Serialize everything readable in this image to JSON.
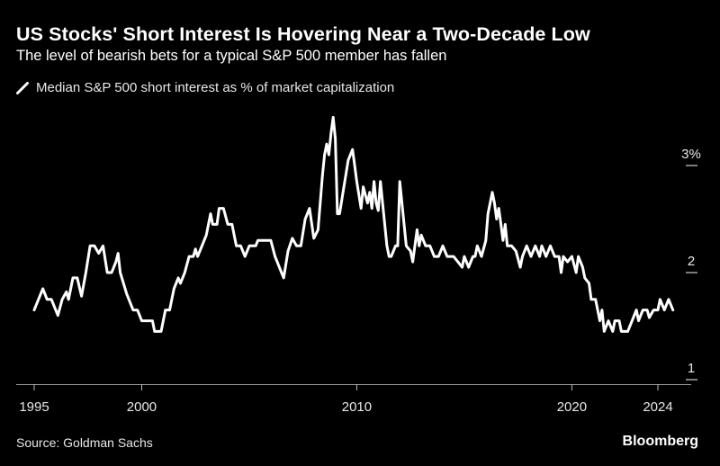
{
  "colors": {
    "background": "#000000",
    "line": "#ffffff",
    "text": "#e8e8e8"
  },
  "header": {
    "title": "US Stocks' Short Interest Is Hovering Near a Two-Decade Low",
    "subtitle": "The level of bearish bets for a typical S&P 500 member has fallen"
  },
  "footer": {
    "source": "Source: Goldman Sachs",
    "brand": "Bloomberg"
  },
  "chart_data": {
    "type": "line",
    "title": "US Stocks' Short Interest Is Hovering Near a Two-Decade Low",
    "subtitle": "The level of bearish bets for a typical S&P 500 member has fallen",
    "xlabel": "",
    "ylabel": "",
    "xlim": [
      1995,
      2025
    ],
    "ylim": [
      1,
      3.5
    ],
    "grid": false,
    "legend_position": "top-left",
    "x_ticks": [
      {
        "value": 1995,
        "label": "1995"
      },
      {
        "value": 2000,
        "label": "2000"
      },
      {
        "value": 2010,
        "label": "2010"
      },
      {
        "value": 2020,
        "label": "2020"
      },
      {
        "value": 2024,
        "label": "2024"
      }
    ],
    "y_ticks": [
      {
        "value": 3,
        "label": "3%"
      },
      {
        "value": 2,
        "label": "2"
      },
      {
        "value": 1,
        "label": "1"
      }
    ],
    "series": [
      {
        "name": "Median S&P 500 short interest as % of market capitalization",
        "points": [
          [
            1995.0,
            1.65
          ],
          [
            1995.3,
            1.8
          ],
          [
            1995.4,
            1.85
          ],
          [
            1995.6,
            1.75
          ],
          [
            1995.8,
            1.75
          ],
          [
            1996.0,
            1.65
          ],
          [
            1996.1,
            1.6
          ],
          [
            1996.3,
            1.75
          ],
          [
            1996.5,
            1.82
          ],
          [
            1996.6,
            1.75
          ],
          [
            1996.8,
            1.95
          ],
          [
            1997.0,
            1.95
          ],
          [
            1997.2,
            1.78
          ],
          [
            1997.4,
            2.0
          ],
          [
            1997.6,
            2.25
          ],
          [
            1997.8,
            2.25
          ],
          [
            1998.0,
            2.18
          ],
          [
            1998.2,
            2.25
          ],
          [
            1998.4,
            2.0
          ],
          [
            1998.6,
            2.0
          ],
          [
            1998.8,
            2.1
          ],
          [
            1998.9,
            2.18
          ],
          [
            1999.0,
            2.0
          ],
          [
            1999.3,
            1.8
          ],
          [
            1999.6,
            1.65
          ],
          [
            1999.8,
            1.65
          ],
          [
            2000.0,
            1.55
          ],
          [
            2000.3,
            1.55
          ],
          [
            2000.5,
            1.55
          ],
          [
            2000.6,
            1.45
          ],
          [
            2000.9,
            1.45
          ],
          [
            2001.0,
            1.55
          ],
          [
            2001.1,
            1.65
          ],
          [
            2001.3,
            1.65
          ],
          [
            2001.5,
            1.85
          ],
          [
            2001.7,
            1.95
          ],
          [
            2001.8,
            1.9
          ],
          [
            2002.0,
            2.0
          ],
          [
            2002.2,
            2.15
          ],
          [
            2002.4,
            2.15
          ],
          [
            2002.5,
            2.22
          ],
          [
            2002.6,
            2.15
          ],
          [
            2002.8,
            2.25
          ],
          [
            2003.0,
            2.35
          ],
          [
            2003.2,
            2.55
          ],
          [
            2003.3,
            2.45
          ],
          [
            2003.5,
            2.45
          ],
          [
            2003.6,
            2.6
          ],
          [
            2003.8,
            2.6
          ],
          [
            2004.0,
            2.45
          ],
          [
            2004.2,
            2.45
          ],
          [
            2004.4,
            2.25
          ],
          [
            2004.6,
            2.25
          ],
          [
            2004.8,
            2.15
          ],
          [
            2005.0,
            2.25
          ],
          [
            2005.3,
            2.25
          ],
          [
            2005.4,
            2.3
          ],
          [
            2005.7,
            2.3
          ],
          [
            2006.0,
            2.3
          ],
          [
            2006.2,
            2.15
          ],
          [
            2006.4,
            2.05
          ],
          [
            2006.6,
            1.95
          ],
          [
            2006.8,
            2.2
          ],
          [
            2007.0,
            2.32
          ],
          [
            2007.2,
            2.25
          ],
          [
            2007.4,
            2.25
          ],
          [
            2007.6,
            2.5
          ],
          [
            2007.8,
            2.6
          ],
          [
            2008.0,
            2.32
          ],
          [
            2008.2,
            2.4
          ],
          [
            2008.4,
            2.9
          ],
          [
            2008.5,
            3.1
          ],
          [
            2008.6,
            3.2
          ],
          [
            2008.7,
            3.1
          ],
          [
            2008.8,
            3.3
          ],
          [
            2008.9,
            3.45
          ],
          [
            2009.0,
            3.25
          ],
          [
            2009.1,
            2.55
          ],
          [
            2009.2,
            2.55
          ],
          [
            2009.4,
            2.8
          ],
          [
            2009.6,
            3.05
          ],
          [
            2009.8,
            3.15
          ],
          [
            2009.9,
            3.0
          ],
          [
            2010.0,
            2.85
          ],
          [
            2010.2,
            2.6
          ],
          [
            2010.3,
            2.8
          ],
          [
            2010.5,
            2.65
          ],
          [
            2010.6,
            2.75
          ],
          [
            2010.7,
            2.6
          ],
          [
            2010.8,
            2.85
          ],
          [
            2010.9,
            2.65
          ],
          [
            2011.0,
            2.58
          ],
          [
            2011.1,
            2.85
          ],
          [
            2011.2,
            2.65
          ],
          [
            2011.4,
            2.25
          ],
          [
            2011.5,
            2.15
          ],
          [
            2011.6,
            2.15
          ],
          [
            2011.8,
            2.25
          ],
          [
            2011.9,
            2.25
          ],
          [
            2012.0,
            2.85
          ],
          [
            2012.2,
            2.45
          ],
          [
            2012.3,
            2.25
          ],
          [
            2012.5,
            2.2
          ],
          [
            2012.6,
            2.1
          ],
          [
            2012.8,
            2.4
          ],
          [
            2012.9,
            2.25
          ],
          [
            2013.0,
            2.35
          ],
          [
            2013.2,
            2.25
          ],
          [
            2013.4,
            2.25
          ],
          [
            2013.6,
            2.15
          ],
          [
            2013.8,
            2.15
          ],
          [
            2014.0,
            2.25
          ],
          [
            2014.2,
            2.15
          ],
          [
            2014.5,
            2.15
          ],
          [
            2014.7,
            2.1
          ],
          [
            2014.9,
            2.05
          ],
          [
            2015.0,
            2.15
          ],
          [
            2015.2,
            2.05
          ],
          [
            2015.4,
            2.15
          ],
          [
            2015.5,
            2.15
          ],
          [
            2015.6,
            2.25
          ],
          [
            2015.8,
            2.15
          ],
          [
            2016.0,
            2.3
          ],
          [
            2016.1,
            2.55
          ],
          [
            2016.3,
            2.75
          ],
          [
            2016.4,
            2.65
          ],
          [
            2016.5,
            2.5
          ],
          [
            2016.6,
            2.6
          ],
          [
            2016.7,
            2.45
          ],
          [
            2016.8,
            2.3
          ],
          [
            2016.9,
            2.45
          ],
          [
            2017.0,
            2.25
          ],
          [
            2017.2,
            2.25
          ],
          [
            2017.4,
            2.2
          ],
          [
            2017.6,
            2.05
          ],
          [
            2017.7,
            2.15
          ],
          [
            2017.9,
            2.25
          ],
          [
            2018.1,
            2.15
          ],
          [
            2018.3,
            2.25
          ],
          [
            2018.5,
            2.15
          ],
          [
            2018.6,
            2.25
          ],
          [
            2018.8,
            2.15
          ],
          [
            2019.0,
            2.25
          ],
          [
            2019.2,
            2.15
          ],
          [
            2019.4,
            2.15
          ],
          [
            2019.5,
            2.0
          ],
          [
            2019.6,
            2.15
          ],
          [
            2019.8,
            2.1
          ],
          [
            2020.0,
            2.15
          ],
          [
            2020.2,
            2.0
          ],
          [
            2020.3,
            2.15
          ],
          [
            2020.5,
            2.05
          ],
          [
            2020.6,
            1.95
          ],
          [
            2020.8,
            1.9
          ],
          [
            2020.9,
            1.75
          ],
          [
            2021.1,
            1.75
          ],
          [
            2021.3,
            1.55
          ],
          [
            2021.4,
            1.65
          ],
          [
            2021.5,
            1.45
          ],
          [
            2021.7,
            1.55
          ],
          [
            2021.9,
            1.45
          ],
          [
            2022.0,
            1.55
          ],
          [
            2022.2,
            1.55
          ],
          [
            2022.3,
            1.45
          ],
          [
            2022.6,
            1.45
          ],
          [
            2022.8,
            1.55
          ],
          [
            2023.0,
            1.65
          ],
          [
            2023.1,
            1.55
          ],
          [
            2023.3,
            1.65
          ],
          [
            2023.5,
            1.65
          ],
          [
            2023.6,
            1.58
          ],
          [
            2023.8,
            1.65
          ],
          [
            2024.0,
            1.65
          ],
          [
            2024.1,
            1.75
          ],
          [
            2024.3,
            1.65
          ],
          [
            2024.5,
            1.75
          ],
          [
            2024.7,
            1.65
          ]
        ]
      }
    ]
  }
}
